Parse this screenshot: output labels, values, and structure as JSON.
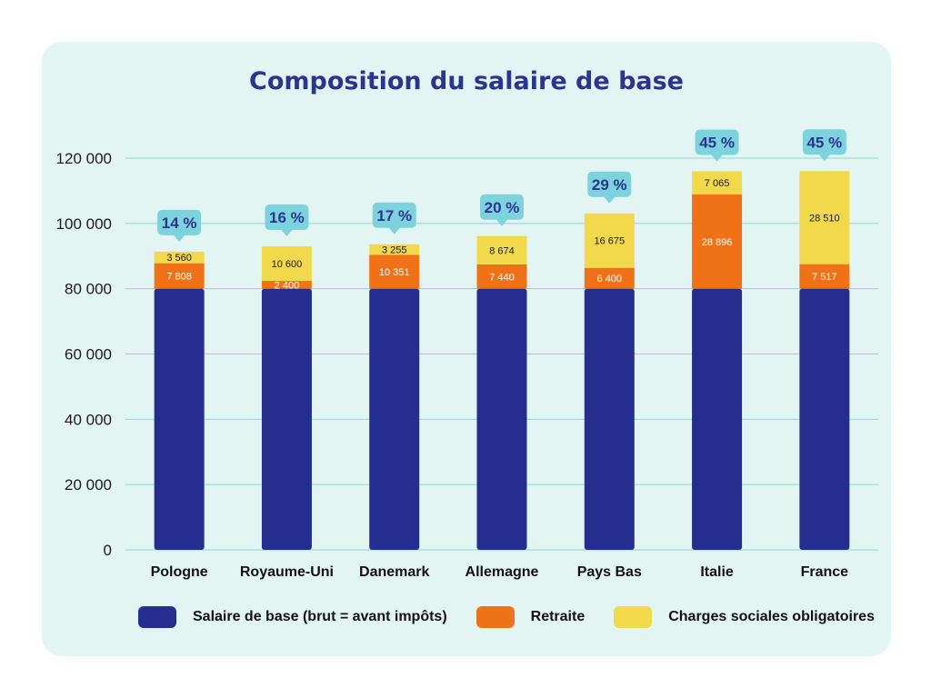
{
  "title": "Composition du salaire de base",
  "colors": {
    "background": "#e3f5f3",
    "base": "#252d8e",
    "retraite": "#f07218",
    "charges": "#f2d84b",
    "bubble": "#7cd3de",
    "bubble_text": "#2b3590",
    "grid": "#8fd6d6"
  },
  "chart_data": {
    "type": "bar",
    "stacked": true,
    "categories": [
      "Pologne",
      "Royaume-Uni",
      "Danemark",
      "Allemagne",
      "Pays Bas",
      "Italie",
      "France"
    ],
    "series": [
      {
        "name": "Salaire de base (brut = avant impôts)",
        "values": [
          80000,
          80000,
          80000,
          80000,
          80000,
          80000,
          80000
        ]
      },
      {
        "name": "Retraite",
        "values": [
          7808,
          2400,
          10351,
          7440,
          6400,
          28896,
          7517
        ]
      },
      {
        "name": "Charges sociales obligatoires",
        "values": [
          3560,
          10600,
          3255,
          8674,
          16675,
          7065,
          28510
        ]
      }
    ],
    "data_labels": {
      "Retraite": [
        "7 808",
        "2 400",
        "10 351",
        "7 440",
        "6 400",
        "28 896",
        "7 517"
      ],
      "Charges sociales obligatoires": [
        "3 560",
        "10 600",
        "3 255",
        "8 674",
        "16 675",
        "7 065",
        "28 510"
      ]
    },
    "percent_labels": [
      "14 %",
      "16 %",
      "17 %",
      "20 %",
      "29 %",
      "45 %",
      "45 %"
    ],
    "yticks": [
      0,
      20000,
      40000,
      60000,
      80000,
      100000,
      120000
    ],
    "ytick_labels": [
      "0",
      "20 000",
      "40 000",
      "60 000",
      "80 000",
      "100 000",
      "120 000"
    ],
    "ylim": [
      0,
      120000
    ],
    "grid": true,
    "legend_position": "bottom"
  }
}
